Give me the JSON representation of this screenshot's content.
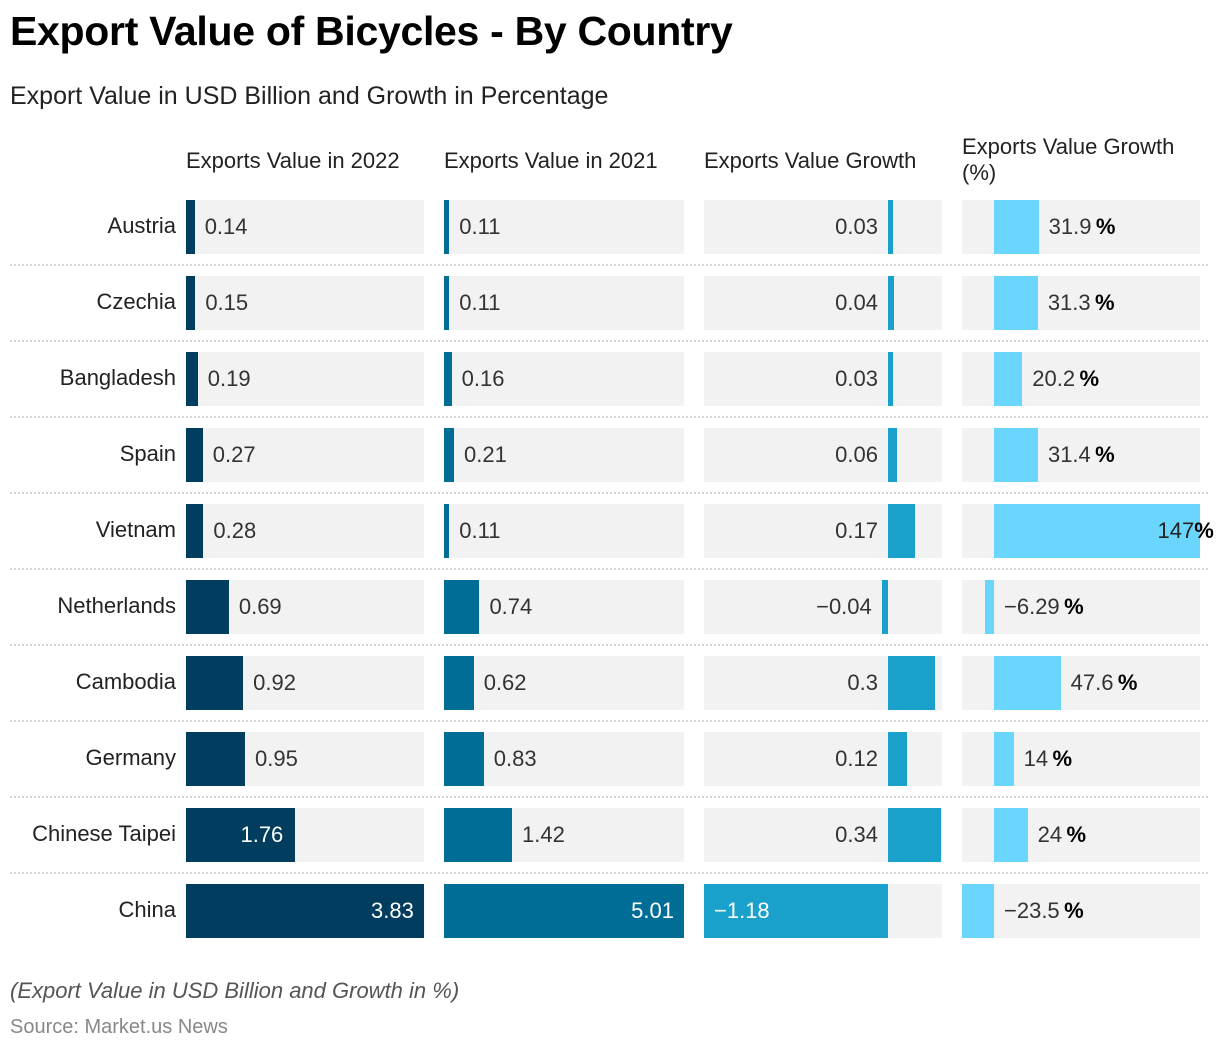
{
  "title": "Export Value of Bicycles - By Country",
  "subtitle": "Export Value in USD Billion and Growth in Percentage",
  "note": "(Export Value in USD Billion and Growth in %)",
  "source": "Source: Market.us News",
  "colors": {
    "exports_2022": "#003d5f",
    "exports_2021": "#006d96",
    "growth": "#19a1cc",
    "growth_pct": "#6ad6fd",
    "track": "#f2f2f2"
  },
  "chart_data": {
    "type": "table",
    "title": "Export Value of Bicycles - By Country",
    "subtitle": "Export Value in USD Billion and Growth in Percentage",
    "columns": [
      {
        "key": "exports_2022",
        "label": "Exports Value in 2022",
        "unit": "USD Billion"
      },
      {
        "key": "exports_2021",
        "label": "Exports Value in 2021",
        "unit": "USD Billion"
      },
      {
        "key": "growth",
        "label": "Exports Value Growth",
        "unit": "USD Billion"
      },
      {
        "key": "growth_pct",
        "label": "Exports Value Growth (%)",
        "unit": "%"
      }
    ],
    "categories": [
      "Austria",
      "Czechia",
      "Bangladesh",
      "Spain",
      "Vietnam",
      "Netherlands",
      "Cambodia",
      "Germany",
      "Chinese Taipei",
      "China"
    ],
    "series": [
      {
        "name": "Exports Value in 2022",
        "values": [
          0.14,
          0.15,
          0.19,
          0.27,
          0.28,
          0.69,
          0.92,
          0.95,
          1.76,
          3.83
        ],
        "labels": [
          "0.14",
          "0.15",
          "0.19",
          "0.27",
          "0.28",
          "0.69",
          "0.92",
          "0.95",
          "1.76",
          "3.83"
        ]
      },
      {
        "name": "Exports Value in 2021",
        "values": [
          0.11,
          0.11,
          0.16,
          0.21,
          0.11,
          0.74,
          0.62,
          0.83,
          1.42,
          5.01
        ],
        "labels": [
          "0.11",
          "0.11",
          "0.16",
          "0.21",
          "0.11",
          "0.74",
          "0.62",
          "0.83",
          "1.42",
          "5.01"
        ]
      },
      {
        "name": "Exports Value Growth",
        "values": [
          0.03,
          0.04,
          0.03,
          0.06,
          0.17,
          -0.04,
          0.3,
          0.12,
          0.34,
          -1.18
        ],
        "labels": [
          "0.03",
          "0.04",
          "0.03",
          "0.06",
          "0.17",
          "−0.04",
          "0.3",
          "0.12",
          "0.34",
          "−1.18"
        ]
      },
      {
        "name": "Exports Value Growth (%)",
        "values": [
          31.9,
          31.3,
          20.2,
          31.4,
          147,
          -6.29,
          47.6,
          14,
          24,
          -23.5
        ],
        "labels": [
          "31.9",
          "31.3",
          "20.2",
          "31.4",
          "147",
          "−6.29",
          "47.6",
          "14",
          "24",
          "−23.5"
        ],
        "suffix": "%"
      }
    ]
  }
}
